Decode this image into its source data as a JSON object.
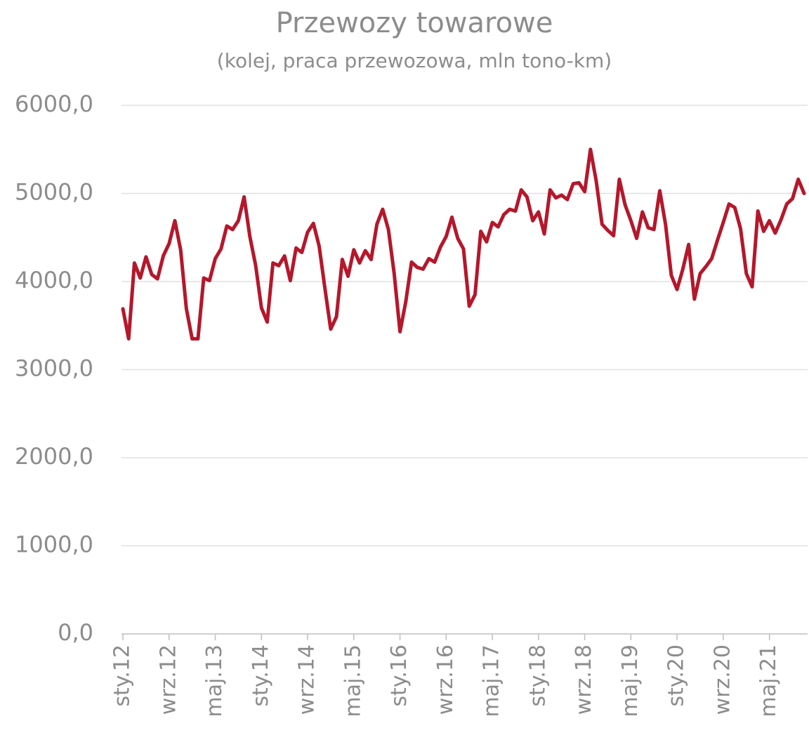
{
  "chart_data": {
    "type": "line",
    "title": "Przewozy towarowe",
    "subtitle": "(kolej, praca przewozowa, mln tono-km)",
    "categories": [
      "sty.12",
      null,
      null,
      null,
      null,
      null,
      null,
      null,
      "wrz.12",
      null,
      null,
      null,
      null,
      null,
      null,
      null,
      "maj.13",
      null,
      null,
      null,
      null,
      null,
      null,
      null,
      "sty.14",
      null,
      null,
      null,
      null,
      null,
      null,
      null,
      "wrz.14",
      null,
      null,
      null,
      null,
      null,
      null,
      null,
      "maj.15",
      null,
      null,
      null,
      null,
      null,
      null,
      null,
      "sty.16",
      null,
      null,
      null,
      null,
      null,
      null,
      null,
      "wrz.16",
      null,
      null,
      null,
      null,
      null,
      null,
      null,
      "maj.17",
      null,
      null,
      null,
      null,
      null,
      null,
      null,
      "sty.18",
      null,
      null,
      null,
      null,
      null,
      null,
      null,
      "wrz.18",
      null,
      null,
      null,
      null,
      null,
      null,
      null,
      "maj.19",
      null,
      null,
      null,
      null,
      null,
      null,
      null,
      "sty.20",
      null,
      null,
      null,
      null,
      null,
      null,
      null,
      "wrz.20",
      null,
      null,
      null,
      null,
      null,
      null,
      null,
      "maj.21",
      null,
      null,
      null,
      null,
      null,
      null
    ],
    "series": [
      {
        "name": "Przewozy towarowe",
        "color": "#b5172b",
        "values": [
          3690,
          3350,
          4210,
          4040,
          4280,
          4080,
          4030,
          4290,
          4430,
          4690,
          4360,
          3690,
          3350,
          3350,
          4040,
          4010,
          4260,
          4370,
          4630,
          4590,
          4690,
          4960,
          4510,
          4180,
          3700,
          3540,
          4210,
          4180,
          4290,
          4010,
          4380,
          4330,
          4560,
          4660,
          4400,
          3920,
          3460,
          3600,
          4250,
          4060,
          4360,
          4210,
          4350,
          4250,
          4650,
          4820,
          4590,
          4090,
          3430,
          3770,
          4220,
          4160,
          4140,
          4260,
          4220,
          4390,
          4510,
          4730,
          4490,
          4370,
          3720,
          3850,
          4570,
          4450,
          4670,
          4620,
          4760,
          4820,
          4800,
          5040,
          4960,
          4690,
          4790,
          4540,
          5040,
          4950,
          4980,
          4930,
          5110,
          5120,
          5020,
          5500,
          5140,
          4650,
          4580,
          4520,
          5160,
          4870,
          4690,
          4490,
          4790,
          4610,
          4590,
          5030,
          4650,
          4070,
          3910,
          4140,
          4420,
          3800,
          4090,
          4170,
          4260,
          4470,
          4670,
          4880,
          4840,
          4600,
          4090,
          3940,
          4800,
          4570,
          4690,
          4550,
          4700,
          4880,
          4940,
          5160,
          5000
        ]
      }
    ],
    "ylim": [
      0,
      6000
    ],
    "yticks": [
      {
        "value": 0,
        "label": "0,0"
      },
      {
        "value": 1000,
        "label": "1000,0"
      },
      {
        "value": 2000,
        "label": "2000,0"
      },
      {
        "value": 3000,
        "label": "3000,0"
      },
      {
        "value": 4000,
        "label": "4000,0"
      },
      {
        "value": 5000,
        "label": "5000,0"
      },
      {
        "value": 6000,
        "label": "6000,0"
      }
    ],
    "grid": true
  }
}
